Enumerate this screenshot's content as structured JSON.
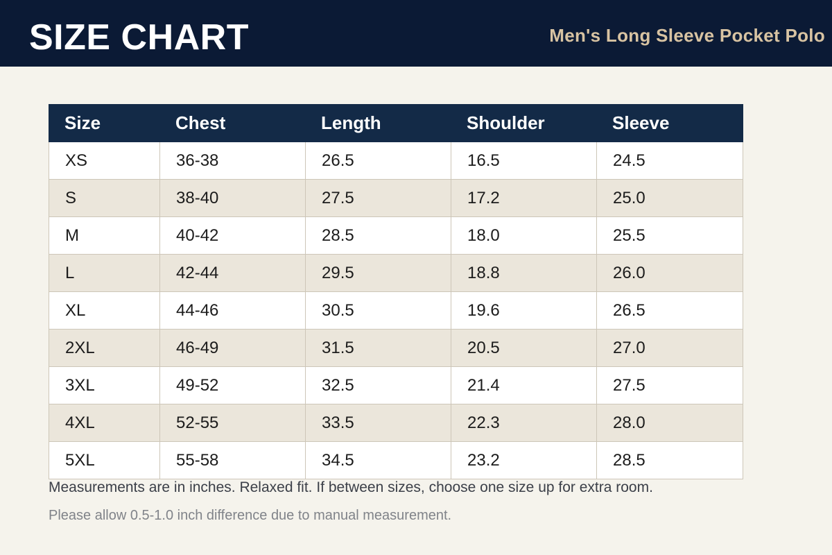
{
  "header": {
    "title": "SIZE CHART",
    "subtitle": "Men's Long Sleeve Pocket Polo"
  },
  "table": {
    "columns": [
      "Size",
      "Chest",
      "Length",
      "Shoulder",
      "Sleeve"
    ],
    "rows": [
      [
        "XS",
        "36-38",
        "26.5",
        "16.5",
        "24.5"
      ],
      [
        "S",
        "38-40",
        "27.5",
        "17.2",
        "25.0"
      ],
      [
        "M",
        "40-42",
        "28.5",
        "18.0",
        "25.5"
      ],
      [
        "L",
        "42-44",
        "29.5",
        "18.8",
        "26.0"
      ],
      [
        "XL",
        "44-46",
        "30.5",
        "19.6",
        "26.5"
      ],
      [
        "2XL",
        "46-49",
        "31.5",
        "20.5",
        "27.0"
      ],
      [
        "3XL",
        "49-52",
        "32.5",
        "21.4",
        "27.5"
      ],
      [
        "4XL",
        "52-55",
        "33.5",
        "22.3",
        "28.0"
      ],
      [
        "5XL",
        "55-58",
        "34.5",
        "23.2",
        "28.5"
      ]
    ]
  },
  "notes": {
    "primary": "Measurements are in inches. Relaxed fit. If between sizes, choose one size up for extra room.",
    "secondary": "Please allow 0.5-1.0 inch difference due to manual measurement."
  },
  "colors": {
    "header_bg": "#0b1a35",
    "table_header_bg": "#132a47",
    "subtitle": "#d8c3a2",
    "page_bg": "#f5f3ec",
    "row_alt_bg": "#ebe6db"
  }
}
